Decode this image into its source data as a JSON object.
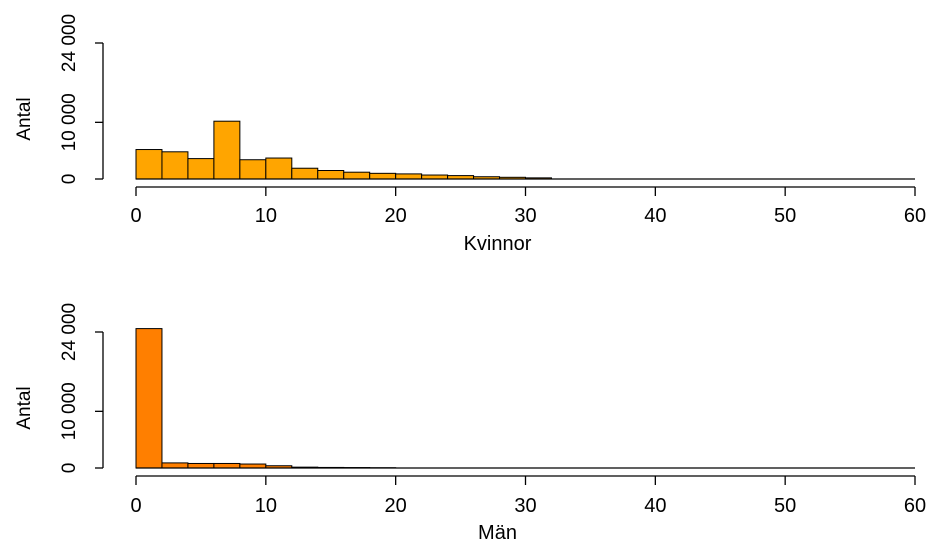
{
  "chart_data": [
    {
      "type": "bar",
      "subtype": "histogram",
      "xlabel": "Kvinnor",
      "ylabel": "Antal",
      "bin_width": 2,
      "bin_edges": [
        0,
        2,
        4,
        6,
        8,
        10,
        12,
        14,
        16,
        18,
        20,
        22,
        24,
        26,
        28,
        30,
        32
      ],
      "values": [
        5200,
        4800,
        3600,
        10200,
        3400,
        3700,
        1900,
        1500,
        1200,
        1000,
        900,
        700,
        600,
        400,
        300,
        200
      ],
      "xlim": [
        0,
        60
      ],
      "ylim": [
        0,
        24000
      ],
      "x_ticks": [
        "0",
        "10",
        "20",
        "30",
        "40",
        "50",
        "60"
      ],
      "y_ticks": [
        "0",
        "10 000",
        "24 000"
      ],
      "y_tick_values": [
        0,
        10000,
        24000
      ],
      "fill_color": "#ffa500",
      "edge_color": "#000000",
      "grid": false,
      "legend": "none"
    },
    {
      "type": "bar",
      "subtype": "histogram",
      "xlabel": "Män",
      "ylabel": "Antal",
      "bin_width": 2,
      "bin_edges": [
        0,
        2,
        4,
        6,
        8,
        10,
        12,
        14,
        16,
        18,
        20
      ],
      "values": [
        24600,
        900,
        800,
        800,
        700,
        400,
        150,
        100,
        80,
        50
      ],
      "xlim": [
        0,
        60
      ],
      "ylim": [
        0,
        24000
      ],
      "x_ticks": [
        "0",
        "10",
        "20",
        "30",
        "40",
        "50",
        "60"
      ],
      "y_ticks": [
        "0",
        "10 000",
        "24 000"
      ],
      "y_tick_values": [
        0,
        10000,
        24000
      ],
      "fill_color": "#ff7f00",
      "edge_color": "#000000",
      "grid": false,
      "legend": "none"
    }
  ]
}
